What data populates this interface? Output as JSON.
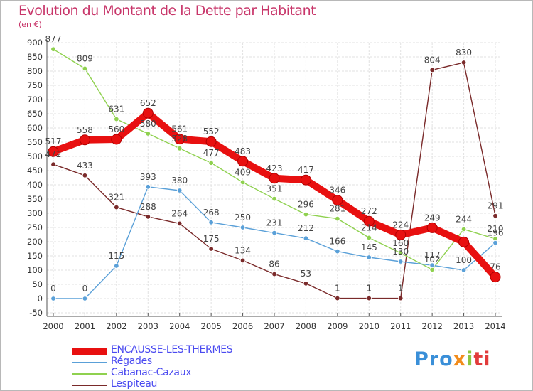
{
  "header": {
    "title": "Evolution du Montant de la Dette par Habitant",
    "unit": "(en €)"
  },
  "logo": {
    "p1": "Pro",
    "p2": "x",
    "p3": "i",
    "p4": "ti"
  },
  "chart_data": {
    "type": "line",
    "title": "Evolution du Montant de la Dette par Habitant",
    "ylabel": "(en €)",
    "xlabel": "",
    "x": [
      "2000",
      "2001",
      "2002",
      "2003",
      "2004",
      "2005",
      "2006",
      "2007",
      "2008",
      "2009",
      "2010",
      "2011",
      "2012",
      "2013",
      "2014"
    ],
    "ylim": [
      -50,
      900
    ],
    "yticks": [
      -50,
      0,
      50,
      100,
      150,
      200,
      250,
      300,
      350,
      400,
      450,
      500,
      550,
      600,
      650,
      700,
      750,
      800,
      850,
      900
    ],
    "grid": true,
    "legend_position": "bottom-left",
    "series": [
      {
        "name": "ENCAUSSE-LES-THERMES",
        "color": "#e81010",
        "values": [
          517,
          558,
          560,
          652,
          561,
          552,
          483,
          423,
          417,
          346,
          272,
          224,
          249,
          199,
          76
        ],
        "labels": [
          "517",
          "558",
          "560",
          "652",
          "561",
          "552",
          "483",
          "423",
          "417",
          "346",
          "272",
          "224",
          "249",
          "",
          "76"
        ]
      },
      {
        "name": "Régades",
        "color": "#5aa0d8",
        "values": [
          0,
          0,
          115,
          393,
          380,
          268,
          250,
          231,
          212,
          166,
          145,
          130,
          117,
          100,
          196
        ],
        "labels": [
          "0",
          "0",
          "115",
          "393",
          "380",
          "268",
          "250",
          "231",
          "212",
          "166",
          "145",
          "130",
          "117",
          "100",
          "196"
        ]
      },
      {
        "name": "Cabanac-Cazaux",
        "color": "#8fd14f",
        "values": [
          877,
          809,
          631,
          580,
          528,
          477,
          409,
          351,
          296,
          281,
          214,
          160,
          102,
          244,
          210
        ],
        "labels": [
          "877",
          "809",
          "631",
          "580",
          "528",
          "477",
          "409",
          "351",
          "296",
          "281",
          "214",
          "160",
          "102",
          "244",
          "210"
        ]
      },
      {
        "name": "Lespiteau",
        "color": "#7a2a2a",
        "values": [
          472,
          433,
          321,
          288,
          264,
          175,
          134,
          86,
          53,
          1,
          1,
          1,
          804,
          830,
          291
        ],
        "labels": [
          "472",
          "433",
          "321",
          "288",
          "264",
          "175",
          "134",
          "86",
          "53",
          "1",
          "1",
          "1",
          "804",
          "830",
          "291"
        ]
      }
    ]
  }
}
